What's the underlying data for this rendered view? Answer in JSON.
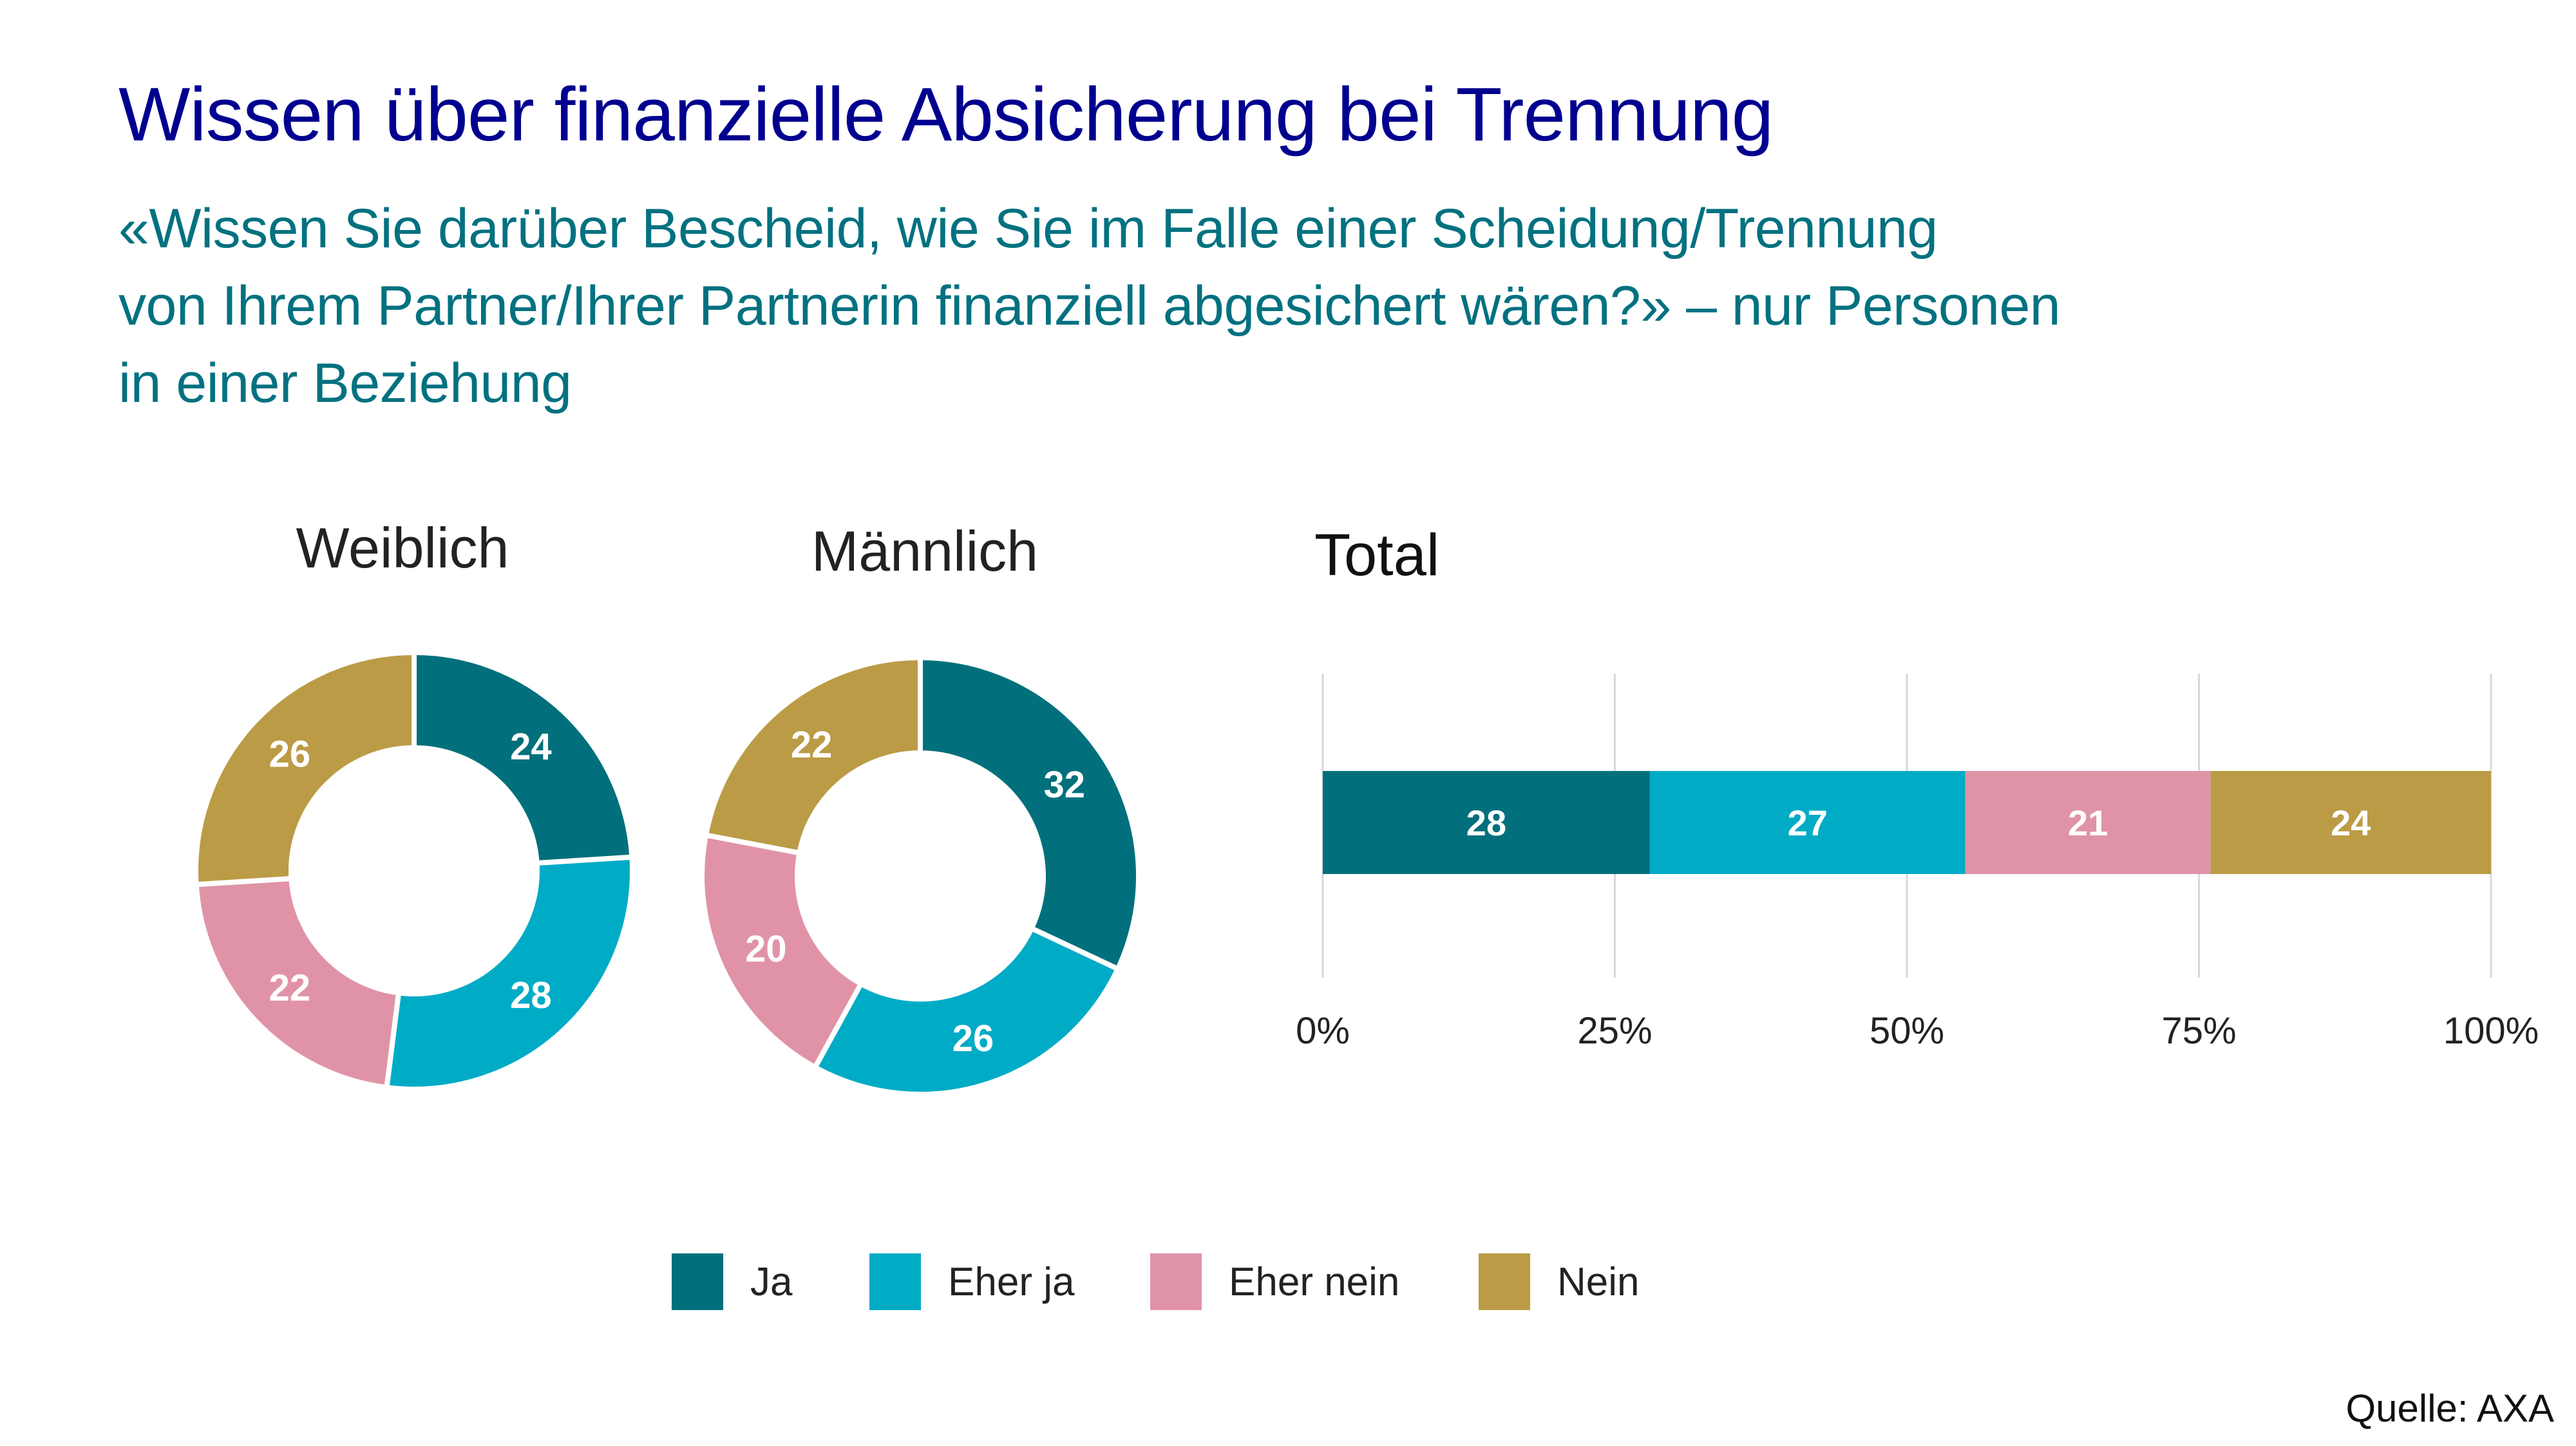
{
  "header": {
    "title": "Wissen über finanzielle Absicherung bei Trennung",
    "subtitle_lines": [
      "«Wissen Sie darüber Bescheid, wie Sie im Falle einer Scheidung/Trennung",
      "von Ihrem Partner/Ihrer Partnerin finanziell abgesichert wären?» – nur Personen",
      "in einer Beziehung"
    ]
  },
  "colors": {
    "title": "#00008f",
    "subtitle": "#027180",
    "ja": "#02707c",
    "eher_ja": "#00abc6",
    "eher_nein": "#e093a7",
    "nein": "#bb9b45",
    "grid": "#d9d9d9"
  },
  "legend": [
    {
      "label": "Ja",
      "color": "#02707c"
    },
    {
      "label": "Eher ja",
      "color": "#00abc6"
    },
    {
      "label": "Eher nein",
      "color": "#e093a7"
    },
    {
      "label": "Nein",
      "color": "#bb9b45"
    }
  ],
  "source": "Quelle: AXA",
  "chart_data": [
    {
      "type": "pie",
      "variant": "donut",
      "title": "Weiblich",
      "categories": [
        "Ja",
        "Eher ja",
        "Eher nein",
        "Nein"
      ],
      "values": [
        24,
        28,
        22,
        26
      ],
      "labels": [
        "24",
        "28",
        "22",
        "26"
      ],
      "start": "12 o'clock",
      "direction": "clockwise"
    },
    {
      "type": "pie",
      "variant": "donut",
      "title": "Männlich",
      "categories": [
        "Ja",
        "Eher ja",
        "Eher nein",
        "Nein"
      ],
      "values": [
        32,
        26,
        20,
        22
      ],
      "labels": [
        "32",
        "26",
        "20",
        "22"
      ],
      "start": "12 o'clock",
      "direction": "clockwise"
    },
    {
      "type": "bar",
      "orientation": "horizontal",
      "stacked": true,
      "title": "Total",
      "categories": [
        "Total"
      ],
      "series": [
        {
          "name": "Ja",
          "values": [
            28
          ]
        },
        {
          "name": "Eher ja",
          "values": [
            27
          ]
        },
        {
          "name": "Eher nein",
          "values": [
            21
          ]
        },
        {
          "name": "Nein",
          "values": [
            24
          ]
        }
      ],
      "xlim": [
        0,
        100
      ],
      "xticks": [
        0,
        25,
        50,
        75,
        100
      ],
      "xtick_labels": [
        "0%",
        "25%",
        "50%",
        "75%",
        "100%"
      ],
      "grid": true,
      "xlabel": "",
      "ylabel": ""
    }
  ]
}
